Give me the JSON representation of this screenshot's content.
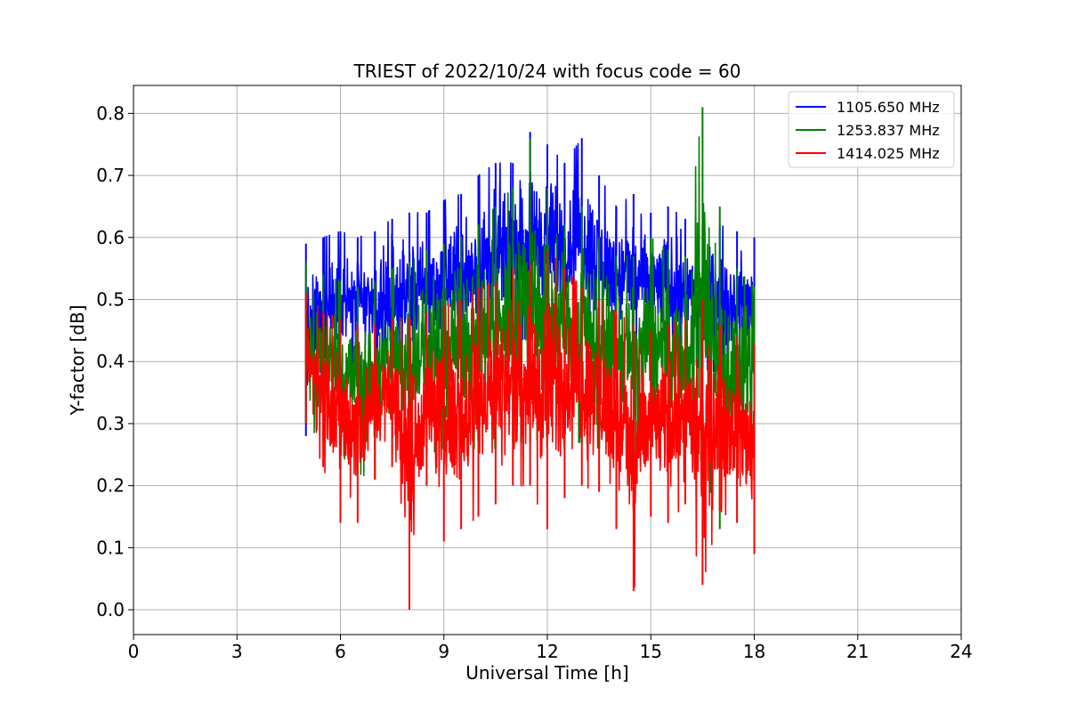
{
  "chart_data": {
    "type": "line",
    "title": "TRIEST of 2022/10/24 with focus code = 60",
    "xlabel": "Universal Time [h]",
    "ylabel": "Y-factor [dB]",
    "xlim": [
      0,
      24
    ],
    "ylim": [
      -0.04,
      0.845
    ],
    "x_ticks": [
      0,
      3,
      6,
      9,
      12,
      15,
      18,
      21,
      24
    ],
    "y_ticks": [
      0.0,
      0.1,
      0.2,
      0.3,
      0.4,
      0.5,
      0.6,
      0.7,
      0.8
    ],
    "grid": true,
    "legend_position": "top-right",
    "series": [
      {
        "name": "1105.650 MHz",
        "color": "#0000ff",
        "x": [
          5.0,
          5.5,
          6.0,
          6.5,
          7.0,
          7.5,
          8.0,
          8.5,
          9.0,
          9.5,
          10.0,
          10.5,
          11.0,
          11.5,
          12.0,
          12.5,
          13.0,
          13.5,
          14.0,
          14.5,
          15.0,
          15.5,
          16.0,
          16.5,
          17.0,
          17.5,
          18.0
        ],
        "upper": [
          0.59,
          0.6,
          0.61,
          0.6,
          0.61,
          0.63,
          0.64,
          0.64,
          0.66,
          0.67,
          0.7,
          0.72,
          0.72,
          0.77,
          0.75,
          0.72,
          0.76,
          0.7,
          0.65,
          0.67,
          0.64,
          0.65,
          0.63,
          0.62,
          0.62,
          0.61,
          0.6
        ],
        "lower": [
          0.28,
          0.36,
          0.38,
          0.38,
          0.38,
          0.38,
          0.38,
          0.38,
          0.4,
          0.4,
          0.41,
          0.42,
          0.43,
          0.44,
          0.44,
          0.44,
          0.44,
          0.43,
          0.42,
          0.41,
          0.4,
          0.4,
          0.39,
          0.39,
          0.38,
          0.38,
          0.38
        ]
      },
      {
        "name": "1253.837 MHz",
        "color": "#008000",
        "x": [
          5.0,
          5.5,
          6.0,
          6.5,
          7.0,
          7.5,
          8.0,
          8.5,
          9.0,
          9.5,
          10.0,
          10.5,
          11.0,
          11.5,
          12.0,
          12.5,
          13.0,
          13.5,
          14.0,
          14.5,
          15.0,
          15.5,
          16.0,
          16.5,
          17.0,
          17.5,
          18.0
        ],
        "upper": [
          0.56,
          0.54,
          0.53,
          0.52,
          0.53,
          0.55,
          0.56,
          0.58,
          0.59,
          0.6,
          0.62,
          0.65,
          0.68,
          0.76,
          0.68,
          0.62,
          0.65,
          0.6,
          0.57,
          0.57,
          0.6,
          0.58,
          0.57,
          0.81,
          0.65,
          0.55,
          0.52
        ],
        "lower": [
          0.3,
          0.27,
          0.25,
          0.22,
          0.21,
          0.25,
          0.25,
          0.25,
          0.26,
          0.26,
          0.26,
          0.26,
          0.27,
          0.27,
          0.28,
          0.27,
          0.27,
          0.26,
          0.26,
          0.25,
          0.25,
          0.25,
          0.25,
          0.24,
          0.13,
          0.2,
          0.22
        ]
      },
      {
        "name": "1414.025 MHz",
        "color": "#ff0000",
        "x": [
          5.0,
          5.5,
          6.0,
          6.5,
          7.0,
          7.5,
          8.0,
          8.5,
          9.0,
          9.5,
          10.0,
          10.5,
          11.0,
          11.5,
          12.0,
          12.5,
          13.0,
          13.5,
          14.0,
          14.5,
          15.0,
          15.5,
          16.0,
          16.5,
          17.0,
          17.5,
          18.0
        ],
        "upper": [
          0.51,
          0.48,
          0.47,
          0.46,
          0.46,
          0.47,
          0.47,
          0.48,
          0.49,
          0.5,
          0.52,
          0.53,
          0.55,
          0.56,
          0.58,
          0.55,
          0.52,
          0.5,
          0.48,
          0.46,
          0.45,
          0.46,
          0.47,
          0.5,
          0.46,
          0.44,
          0.43
        ],
        "lower": [
          0.3,
          0.23,
          0.14,
          0.14,
          0.21,
          0.23,
          0.0,
          0.2,
          0.11,
          0.13,
          0.15,
          0.17,
          0.2,
          0.2,
          0.13,
          0.18,
          0.2,
          0.19,
          0.13,
          0.03,
          0.15,
          0.14,
          0.17,
          0.04,
          0.16,
          0.14,
          0.09
        ]
      }
    ]
  }
}
